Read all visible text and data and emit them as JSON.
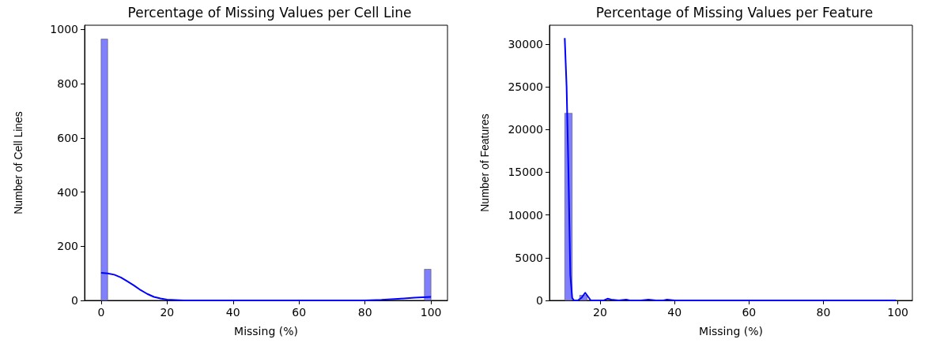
{
  "chart_data": [
    {
      "type": "histogram",
      "title": "Percentage of Missing Values per Cell Line",
      "xlabel": "Missing (%)",
      "ylabel": "Number of Cell Lines",
      "xlim": [
        -5,
        105
      ],
      "xticks": [
        0,
        20,
        40,
        60,
        80,
        100
      ],
      "ylim": [
        0,
        1016
      ],
      "yticks": [
        0,
        200,
        400,
        600,
        800,
        1000
      ],
      "grid": false,
      "series": [
        {
          "type": "histogram",
          "color": "#8080ff",
          "bins": [
            0,
            2,
            4,
            6,
            8,
            10,
            12,
            14,
            16,
            18,
            20,
            22,
            24,
            26,
            28,
            30,
            32,
            34,
            36,
            38,
            40,
            42,
            44,
            46,
            48,
            50,
            52,
            54,
            56,
            58,
            60,
            62,
            64,
            66,
            68,
            70,
            72,
            74,
            76,
            78,
            80,
            82,
            84,
            86,
            88,
            90,
            92,
            94,
            96,
            98,
            100
          ],
          "values": [
            965,
            0,
            0,
            0,
            0,
            0,
            0,
            0,
            0,
            0,
            0,
            0,
            0,
            0,
            0,
            0,
            0,
            0,
            0,
            0,
            0,
            0,
            0,
            0,
            0,
            0,
            0,
            0,
            0,
            0,
            0,
            0,
            0,
            0,
            0,
            0,
            0,
            0,
            0,
            0,
            0,
            0,
            0,
            0,
            0,
            0,
            0,
            0,
            0,
            115
          ]
        },
        {
          "type": "line",
          "color": "#0000ff",
          "x": [
            0,
            2,
            4,
            6,
            8,
            10,
            12,
            14,
            16,
            18,
            20,
            25,
            30,
            40,
            60,
            75,
            80,
            85,
            90,
            95,
            100
          ],
          "values": [
            102,
            100,
            95,
            85,
            70,
            55,
            38,
            24,
            13,
            7,
            3,
            0,
            0,
            0,
            0,
            0,
            0,
            2,
            6,
            10,
            13
          ]
        }
      ]
    },
    {
      "type": "histogram",
      "title": "Percentage of Missing Values per Feature",
      "xlabel": "Missing (%)",
      "ylabel": "Number of Features",
      "xlim": [
        6.4,
        103.9
      ],
      "xticks": [
        20,
        40,
        60,
        80,
        100
      ],
      "ylim": [
        0,
        32200
      ],
      "yticks": [
        0,
        5000,
        10000,
        15000,
        20000,
        25000,
        30000
      ],
      "grid": false,
      "series": [
        {
          "type": "histogram",
          "color": "#8080ff",
          "bins": [
            10.5,
            12.5,
            14.5,
            16.5,
            18.5,
            20.5,
            22.5,
            24.5,
            26.5,
            28.5,
            30.5,
            32.5,
            34.5,
            36.5,
            38.5,
            40.5,
            42.5,
            44.5,
            46.5,
            48.5,
            50.5,
            52.5,
            54.5,
            56.5,
            58.5,
            60.5,
            62.5,
            64.5,
            66.5,
            68.5,
            70.5,
            72.5,
            74.5,
            76.5,
            78.5,
            80.5,
            82.5,
            84.5,
            86.5,
            88.5,
            90.5,
            92.5,
            94.5,
            96.5,
            98.5,
            100.5
          ],
          "values": [
            21900,
            0,
            600,
            0,
            0,
            0,
            0,
            0,
            0,
            0,
            0,
            0,
            0,
            0,
            0,
            0,
            0,
            0,
            0,
            0,
            0,
            0,
            0,
            0,
            0,
            0,
            0,
            0,
            0,
            0,
            0,
            0,
            0,
            0,
            0,
            0,
            0,
            0,
            0,
            0,
            0,
            0,
            0,
            0,
            0
          ]
        },
        {
          "type": "line",
          "color": "#0000ff",
          "x": [
            10.5,
            11,
            11.5,
            12,
            12.5,
            13,
            14,
            15,
            16,
            17,
            17.5,
            19,
            21,
            22,
            23,
            25,
            27,
            28,
            31,
            33,
            35,
            37,
            38,
            40,
            50,
            99.5
          ],
          "values": [
            30700,
            25000,
            15000,
            3000,
            300,
            0,
            0,
            300,
            900,
            300,
            0,
            0,
            0,
            200,
            100,
            0,
            100,
            0,
            0,
            100,
            0,
            0,
            100,
            0,
            0,
            0
          ]
        }
      ]
    }
  ]
}
